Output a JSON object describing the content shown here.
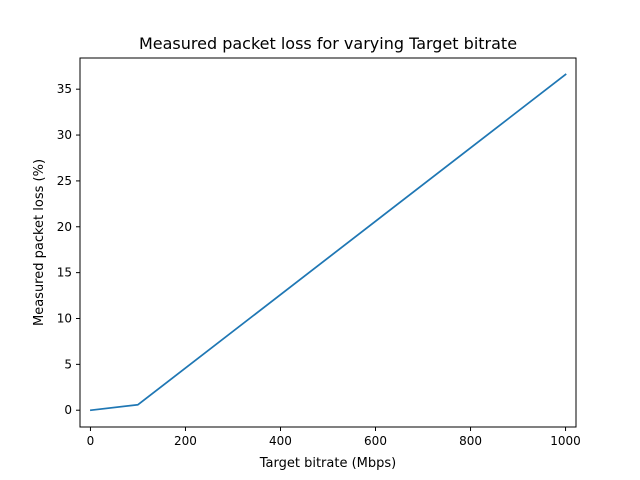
{
  "chart_data": {
    "type": "line",
    "title": "Measured packet loss for varying Target bitrate",
    "xlabel": "Target bitrate (Mbps)",
    "ylabel": "Measured packet loss (%)",
    "xlim": [
      -22,
      1022
    ],
    "ylim": [
      -1.83,
      38.4
    ],
    "xticks": [
      0,
      200,
      400,
      600,
      800,
      1000
    ],
    "yticks": [
      0,
      5,
      10,
      15,
      20,
      25,
      30,
      35
    ],
    "grid": false,
    "legend": "none",
    "series": [
      {
        "color": "#1f77b4",
        "x": [
          1,
          100,
          1000
        ],
        "y": [
          0.0,
          0.6,
          36.6
        ]
      }
    ]
  }
}
